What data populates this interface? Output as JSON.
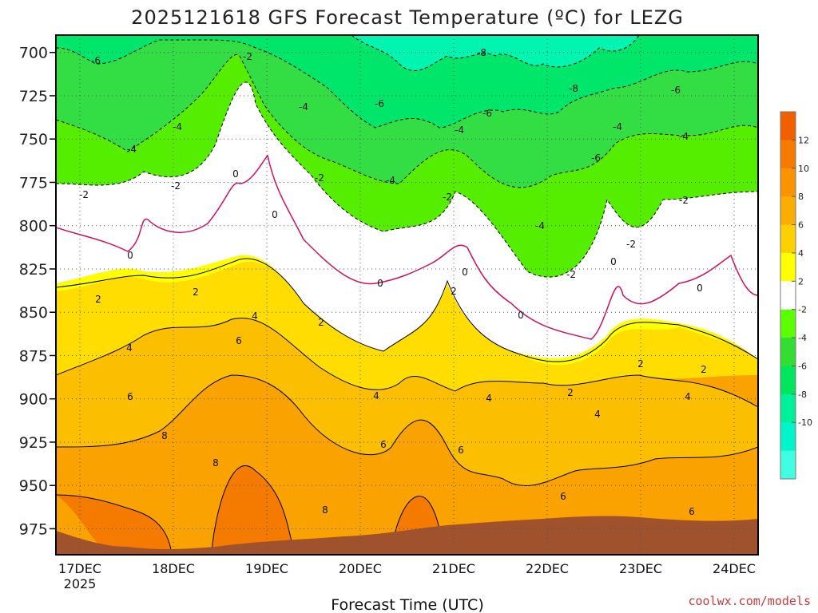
{
  "chart_data": {
    "type": "heatmap",
    "title": "2025121618 GFS Forecast Temperature (ºC) for LEZG",
    "xlabel": "Forecast Time (UTC)",
    "ylabel": "",
    "y_ticks": [
      "700",
      "725",
      "750",
      "775",
      "800",
      "825",
      "850",
      "875",
      "900",
      "925",
      "950",
      "975"
    ],
    "y_range": [
      690,
      990
    ],
    "x_ticks": [
      "17DEC",
      "18DEC",
      "19DEC",
      "20DEC",
      "21DEC",
      "22DEC",
      "23DEC",
      "24DEC"
    ],
    "x_tick_year": "2025",
    "x_range_days": [
      0,
      7.5
    ],
    "colorbar_labels": [
      "12",
      "10",
      "8",
      "6",
      "4",
      "2",
      "-2",
      "-4",
      "-6",
      "-8",
      "-10"
    ],
    "colorbar_colors": [
      "#f16000",
      "#f57a00",
      "#f99400",
      "#fcae00",
      "#ffd000",
      "#ffff00",
      "#ffffff",
      "#5bff00",
      "#33dd33",
      "#00e65c",
      "#00f09a",
      "#00f5c8",
      "#40ffe0"
    ],
    "contour_labels": [
      "-8",
      "-6",
      "-4",
      "-2",
      "0",
      "2",
      "4",
      "6",
      "8"
    ],
    "credit": "coolwx.com/models"
  }
}
